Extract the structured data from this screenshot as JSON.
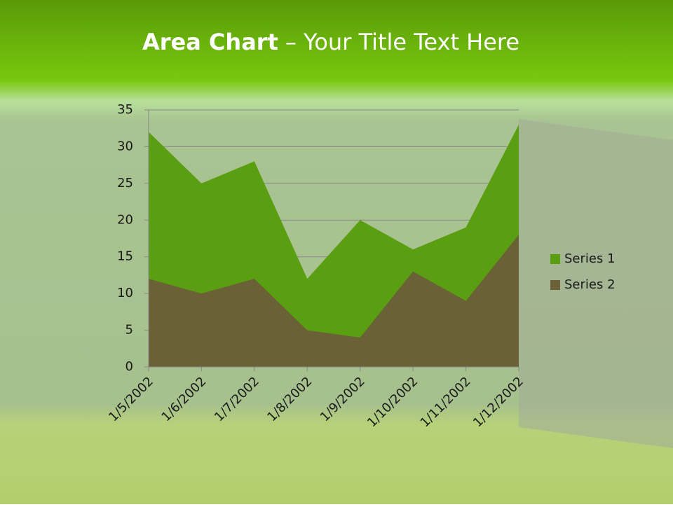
{
  "chart_data": {
    "type": "area",
    "title_parts": [
      "Area Chart",
      "– Your Title Text Here"
    ],
    "categories": [
      "1/5/2002",
      "1/6/2002",
      "1/7/2002",
      "1/8/2002",
      "1/9/2002",
      "1/10/2002",
      "1/11/2002",
      "1/12/2002"
    ],
    "series": [
      {
        "name": "Series 1",
        "color": "#5a9e12",
        "values": [
          32,
          25,
          28,
          12,
          20,
          16,
          19,
          33
        ]
      },
      {
        "name": "Series 2",
        "color": "#6a6236",
        "values": [
          12,
          10,
          12,
          5,
          4,
          13,
          9,
          18
        ]
      }
    ],
    "ylim": [
      0,
      35
    ],
    "yticks": [
      0,
      5,
      10,
      15,
      20,
      25,
      30,
      35
    ],
    "grid": true,
    "legend": "right"
  }
}
